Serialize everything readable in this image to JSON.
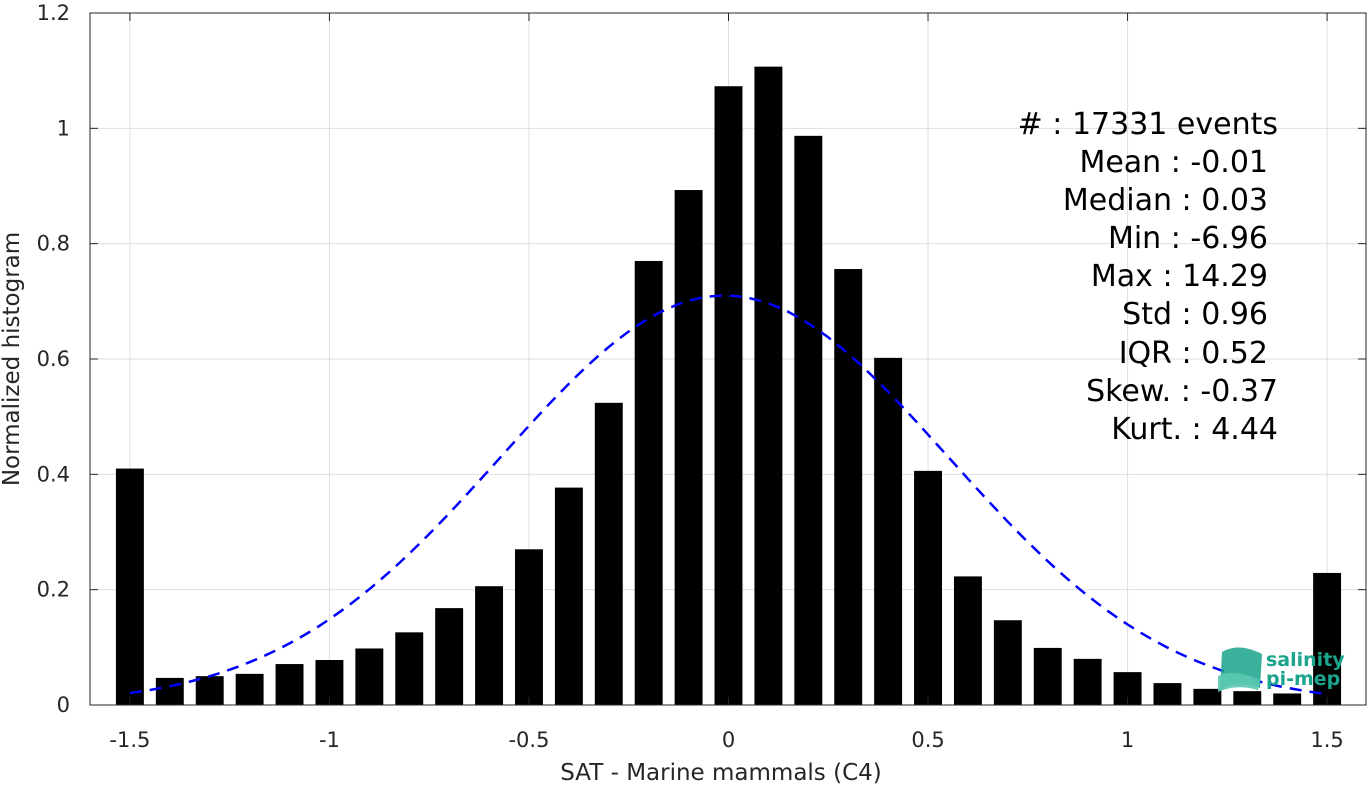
{
  "chart_data": {
    "type": "bar",
    "xlabel": "SAT - Marine mammals (C4)",
    "ylabel": "Normalized histogram",
    "xlim": [
      -1.6,
      1.6
    ],
    "ylim": [
      0,
      1.2
    ],
    "xticks": [
      "-1.5",
      "-1",
      "-0.5",
      "0",
      "0.5",
      "1",
      "1.5"
    ],
    "xtick_values": [
      -1.5,
      -1,
      -0.5,
      0,
      0.5,
      1,
      1.5
    ],
    "yticks": [
      "0",
      "0.2",
      "0.4",
      "0.6",
      "0.8",
      "1",
      "1.2"
    ],
    "ytick_values": [
      0,
      0.2,
      0.4,
      0.6,
      0.8,
      1.0,
      1.2
    ],
    "grid": true,
    "bin_width": 0.1,
    "bins": [
      {
        "x": -1.5,
        "y": 0.41
      },
      {
        "x": -1.4,
        "y": 0.047
      },
      {
        "x": -1.3,
        "y": 0.05
      },
      {
        "x": -1.2,
        "y": 0.054
      },
      {
        "x": -1.1,
        "y": 0.071
      },
      {
        "x": -1.0,
        "y": 0.078
      },
      {
        "x": -0.9,
        "y": 0.098
      },
      {
        "x": -0.8,
        "y": 0.126
      },
      {
        "x": -0.7,
        "y": 0.168
      },
      {
        "x": -0.6,
        "y": 0.206
      },
      {
        "x": -0.5,
        "y": 0.27
      },
      {
        "x": -0.4,
        "y": 0.377
      },
      {
        "x": -0.3,
        "y": 0.524
      },
      {
        "x": -0.2,
        "y": 0.77
      },
      {
        "x": -0.1,
        "y": 0.893
      },
      {
        "x": 0.0,
        "y": 1.073
      },
      {
        "x": 0.1,
        "y": 1.107
      },
      {
        "x": 0.2,
        "y": 0.987
      },
      {
        "x": 0.3,
        "y": 0.756
      },
      {
        "x": 0.4,
        "y": 0.602
      },
      {
        "x": 0.5,
        "y": 0.406
      },
      {
        "x": 0.6,
        "y": 0.223
      },
      {
        "x": 0.7,
        "y": 0.147
      },
      {
        "x": 0.8,
        "y": 0.099
      },
      {
        "x": 0.9,
        "y": 0.08
      },
      {
        "x": 1.0,
        "y": 0.057
      },
      {
        "x": 1.1,
        "y": 0.038
      },
      {
        "x": 1.2,
        "y": 0.028
      },
      {
        "x": 1.3,
        "y": 0.024
      },
      {
        "x": 1.4,
        "y": 0.02
      },
      {
        "x": 1.5,
        "y": 0.229
      }
    ],
    "bar_color": "#000000",
    "gaussian_fit": {
      "mean": -0.01,
      "std": 0.56,
      "peak": 0.71,
      "x_range": [
        -1.5,
        1.5
      ],
      "color": "#0000ff",
      "style": "dashed"
    },
    "stats": [
      "#  : 17331 events",
      "Mean : -0.01",
      "Median : 0.03",
      "Min : -6.96",
      "Max : 14.29",
      "Std : 0.96",
      "IQR : 0.52",
      "Skew. : -0.37",
      "Kurt. : 4.44"
    ]
  },
  "logo": {
    "line1": "salinity",
    "line2": "pi-mep",
    "color": "#1aa58c"
  }
}
